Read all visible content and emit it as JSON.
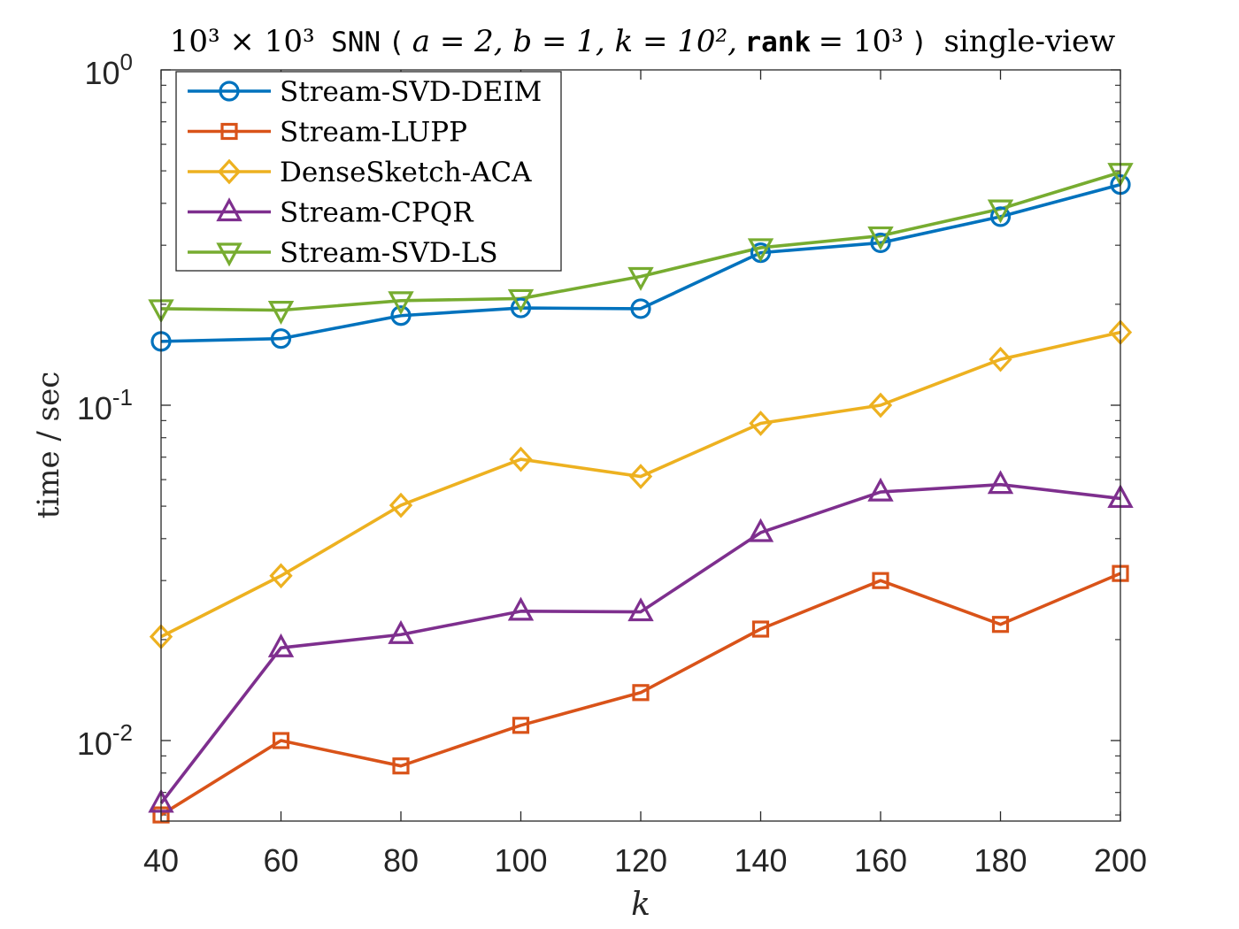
{
  "chart_data": {
    "type": "line",
    "title_parts": {
      "dims": "10³ × 10³",
      "model": "SNN",
      "params_open": "(",
      "params_expr": "a = 2, b = 1, k = 10²,",
      "rank_word": "rank",
      "rank_expr": "= 10³",
      "params_close": ")",
      "suffix": "single-view"
    },
    "xlabel": "k",
    "ylabel": "time / sec",
    "yscale": "log",
    "x": [
      40,
      60,
      80,
      100,
      120,
      140,
      160,
      180,
      200
    ],
    "xlim": [
      40,
      200
    ],
    "ylim": [
      0.006,
      1
    ],
    "xticks": [
      "40",
      "60",
      "80",
      "100",
      "120",
      "140",
      "160",
      "180",
      "200"
    ],
    "yticks": [
      {
        "base": "10",
        "exp": "0",
        "value": 1
      },
      {
        "base": "10",
        "exp": "-1",
        "value": 0.1
      },
      {
        "base": "10",
        "exp": "-2",
        "value": 0.01
      }
    ],
    "legend_position": "top-left",
    "series": [
      {
        "name": "Stream-SVD-DEIM",
        "color": "#0072BD",
        "marker": "circle",
        "values": [
          0.155,
          0.158,
          0.185,
          0.195,
          0.194,
          0.285,
          0.305,
          0.365,
          0.455
        ]
      },
      {
        "name": "Stream-LUPP",
        "color": "#D95319",
        "marker": "square",
        "values": [
          0.006,
          0.01,
          0.0084,
          0.0111,
          0.0139,
          0.0215,
          0.03,
          0.0222,
          0.0315
        ]
      },
      {
        "name": "DenseSketch-ACA",
        "color": "#EDB120",
        "marker": "diamond",
        "values": [
          0.0204,
          0.031,
          0.0503,
          0.069,
          0.0613,
          0.0883,
          0.1,
          0.137,
          0.165
        ]
      },
      {
        "name": "Stream-CPQR",
        "color": "#7E2F8E",
        "marker": "triangle-up",
        "values": [
          0.0065,
          0.0189,
          0.0207,
          0.0243,
          0.0242,
          0.0417,
          0.0551,
          0.058,
          0.0527
        ]
      },
      {
        "name": "Stream-SVD-LS",
        "color": "#77AC30",
        "marker": "triangle-down",
        "values": [
          0.194,
          0.192,
          0.205,
          0.208,
          0.242,
          0.295,
          0.32,
          0.385,
          0.495
        ]
      }
    ]
  }
}
